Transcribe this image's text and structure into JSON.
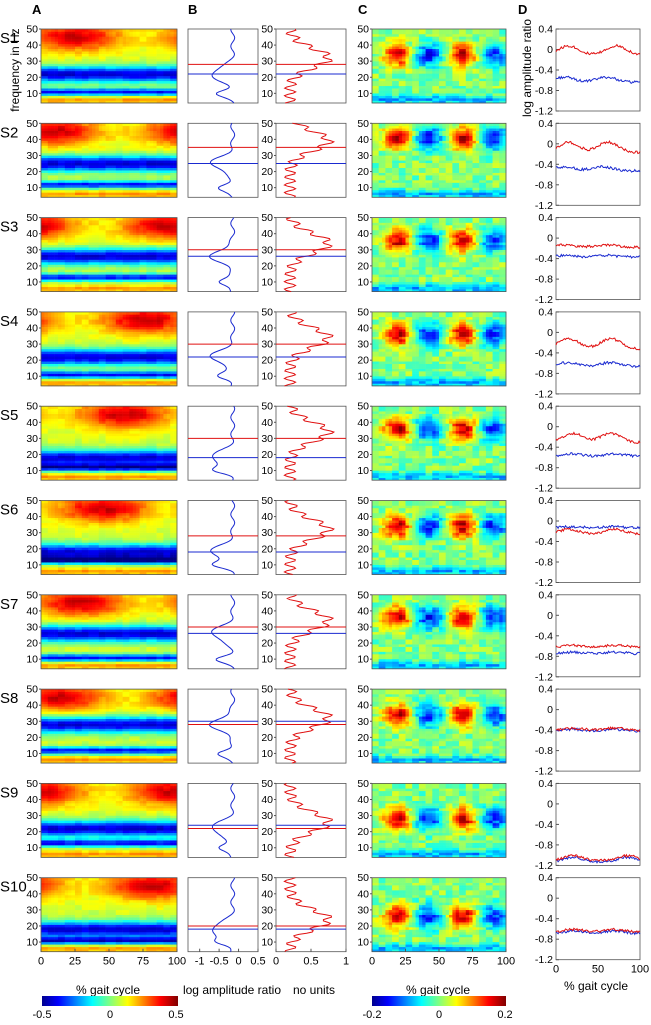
{
  "figure": {
    "panel_letters": [
      "A",
      "B",
      "C",
      "D"
    ],
    "subject_labels": [
      "S1",
      "S2",
      "S3",
      "S4",
      "S5",
      "S6",
      "S7",
      "S8",
      "S9",
      "S10"
    ],
    "colors": {
      "red": "#e01010",
      "blue": "#1a2ad0",
      "axis": "#555555",
      "jet_min": "#00008f",
      "jet_max": "#800000"
    }
  },
  "chart_data": [
    {
      "panel": "A",
      "type": "heatmap",
      "title": "",
      "ylabel": "frequency in Hz",
      "xlabel": "% gait cycle",
      "x_ticks": [
        "0",
        "25",
        "50",
        "75",
        "100"
      ],
      "y_ticks": [
        "10",
        "20",
        "30",
        "40",
        "50"
      ],
      "xlim": [
        0,
        100
      ],
      "ylim": [
        4,
        50
      ],
      "colorbar": {
        "ticks": [
          "-0.5",
          "0",
          "0.5"
        ],
        "range": [
          -0.5,
          0.5
        ],
        "colormap": "jet"
      },
      "subjects": [
        {
          "label": "S1",
          "blue_band_hz": 22,
          "red_band_hz": 28
        },
        {
          "label": "S2",
          "blue_band_hz": 25,
          "red_band_hz": 35
        },
        {
          "label": "S3",
          "blue_band_hz": 26,
          "red_band_hz": 30
        },
        {
          "label": "S4",
          "blue_band_hz": 22,
          "red_band_hz": 30
        },
        {
          "label": "S5",
          "blue_band_hz": 18,
          "red_band_hz": 30
        },
        {
          "label": "S6",
          "blue_band_hz": 18,
          "red_band_hz": 28
        },
        {
          "label": "S7",
          "blue_band_hz": 26,
          "red_band_hz": 30
        },
        {
          "label": "S8",
          "blue_band_hz": 30,
          "red_band_hz": 28
        },
        {
          "label": "S9",
          "blue_band_hz": 24,
          "red_band_hz": 22
        },
        {
          "label": "S10",
          "blue_band_hz": 18,
          "red_band_hz": 20
        }
      ]
    },
    {
      "panel": "B-left",
      "type": "line",
      "xlabel": "log amplitude ratio",
      "x_ticks": [
        "-1",
        "-0.5",
        "0",
        "0.5"
      ],
      "xlim": [
        -1.3,
        0.5
      ],
      "ylim": [
        4,
        50
      ],
      "series": [
        {
          "name": "mean log amplitude ratio per frequency",
          "color": "blue"
        }
      ]
    },
    {
      "panel": "B-right",
      "type": "line",
      "xlabel": "no units",
      "x_ticks": [
        "0",
        "0.5",
        "1"
      ],
      "y_ticks": [
        "10",
        "20",
        "30",
        "40",
        "50"
      ],
      "xlim": [
        0,
        1
      ],
      "ylim": [
        4,
        50
      ],
      "series": [
        {
          "name": "normalized modulation per frequency",
          "color": "red"
        }
      ]
    },
    {
      "panel": "C",
      "type": "heatmap",
      "xlabel": "% gait cycle",
      "x_ticks": [
        "0",
        "25",
        "50",
        "75",
        "100"
      ],
      "y_ticks": [
        "10",
        "20",
        "30",
        "40",
        "50"
      ],
      "xlim": [
        0,
        100
      ],
      "ylim": [
        4,
        50
      ],
      "colorbar": {
        "ticks": [
          "-0.2",
          "0",
          "0.2"
        ],
        "range": [
          -0.2,
          0.2
        ],
        "colormap": "jet"
      }
    },
    {
      "panel": "D",
      "type": "line",
      "ylabel": "log amplitude ratio",
      "xlabel": "% gait cycle",
      "x_ticks": [
        "0",
        "50",
        "100"
      ],
      "y_ticks": [
        "0.4",
        "0",
        "-0.4",
        "-0.8",
        "-1.2"
      ],
      "xlim": [
        0,
        100
      ],
      "ylim": [
        -1.2,
        0.4
      ],
      "subjects": [
        {
          "label": "S1",
          "red_mean": 0.0,
          "red_amp": 0.18,
          "red_peaks": [
            15,
            72
          ],
          "blue_mean": -0.58,
          "blue_amp": 0.1,
          "blue_peaks": [
            10,
            60
          ]
        },
        {
          "label": "S2",
          "red_mean": -0.05,
          "red_amp": 0.2,
          "red_peaks": [
            15,
            62
          ],
          "blue_mean": -0.48,
          "blue_amp": 0.08,
          "blue_peaks": [
            10,
            55
          ]
        },
        {
          "label": "S3",
          "red_mean": -0.15,
          "red_amp": 0.05,
          "red_peaks": [
            10,
            60
          ],
          "blue_mean": -0.35,
          "blue_amp": 0.03,
          "blue_peaks": [
            10,
            60
          ]
        },
        {
          "label": "S4",
          "red_mean": -0.2,
          "red_amp": 0.2,
          "red_peaks": [
            15,
            65
          ],
          "blue_mean": -0.62,
          "blue_amp": 0.08,
          "blue_peaks": [
            15,
            65
          ]
        },
        {
          "label": "S5",
          "red_mean": -0.2,
          "red_amp": 0.18,
          "red_peaks": [
            20,
            65
          ],
          "blue_mean": -0.55,
          "blue_amp": 0.05,
          "blue_peaks": [
            20,
            70
          ]
        },
        {
          "label": "S6",
          "red_mean": -0.2,
          "red_amp": 0.1,
          "red_peaks": [
            15,
            70
          ],
          "blue_mean": -0.12,
          "blue_amp": 0.02,
          "blue_peaks": [
            20,
            70
          ]
        },
        {
          "label": "S7",
          "red_mean": -0.6,
          "red_amp": 0.03,
          "red_peaks": [
            20,
            70
          ],
          "blue_mean": -0.73,
          "blue_amp": 0.03,
          "blue_peaks": [
            20,
            70
          ]
        },
        {
          "label": "S8",
          "red_mean": -0.38,
          "red_amp": 0.04,
          "red_peaks": [
            20,
            70
          ],
          "blue_mean": -0.4,
          "blue_amp": 0.04,
          "blue_peaks": [
            20,
            70
          ]
        },
        {
          "label": "S9",
          "red_mean": -1.05,
          "red_amp": 0.1,
          "red_peaks": [
            20,
            85
          ],
          "blue_mean": -1.08,
          "blue_amp": 0.1,
          "blue_peaks": [
            20,
            85
          ]
        },
        {
          "label": "S10",
          "red_mean": -0.63,
          "red_amp": 0.05,
          "red_peaks": [
            20,
            70
          ],
          "blue_mean": -0.66,
          "blue_amp": 0.05,
          "blue_peaks": [
            20,
            70
          ]
        }
      ]
    }
  ]
}
